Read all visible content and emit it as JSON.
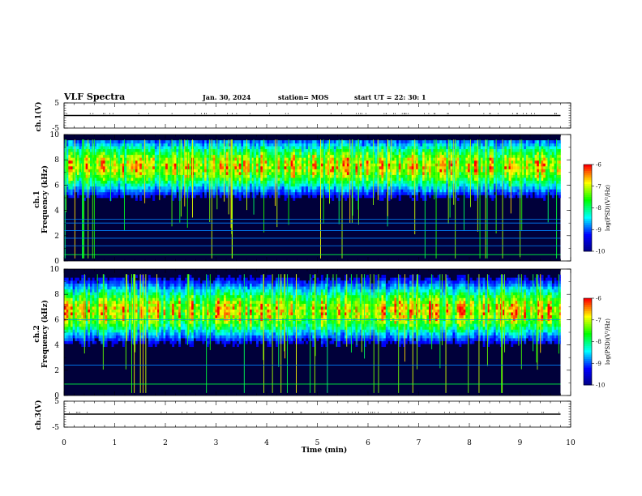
{
  "header": {
    "title": "VLF Spectra",
    "date": "Jan. 30, 2024",
    "station": "station= MOS",
    "start_ut": "start  UT  =   22: 30: 1"
  },
  "chart_data": [
    {
      "type": "line",
      "panel": "ch1-waveform",
      "ylabel": "ch.1(V)",
      "xlim": [
        0,
        10
      ],
      "ylim": [
        -5,
        5
      ],
      "yticks": [
        "5",
        "-5"
      ],
      "series": [
        {
          "x": [
            0,
            9.8
          ],
          "y": [
            0,
            0
          ]
        }
      ]
    },
    {
      "type": "heatmap",
      "panel": "ch1-spectrogram",
      "ylabel": "ch.1\nFrequency (kHz)",
      "xlim": [
        0,
        9.8
      ],
      "ylim": [
        0,
        10
      ],
      "yticks": [
        "0",
        "2",
        "4",
        "6",
        "8",
        "10"
      ],
      "band_center_khz": 7.5,
      "band_spread_khz": 1.8,
      "horizontal_lines_khz": [
        0.5,
        1.2,
        1.8,
        2.4,
        3.0,
        3.3
      ],
      "colorbar": {
        "label": "log(PSD)(V²/Hz)",
        "ticks": [
          "-6",
          "-7",
          "-8",
          "-9",
          "-10"
        ],
        "range": [
          -10,
          -6
        ]
      }
    },
    {
      "type": "heatmap",
      "panel": "ch2-spectrogram",
      "ylabel": "ch.2\nFrequency (kHz)",
      "xlim": [
        0,
        9.8
      ],
      "ylim": [
        0,
        10
      ],
      "yticks": [
        "0",
        "2",
        "4",
        "6",
        "8",
        "10"
      ],
      "band_center_khz": 6.7,
      "band_spread_khz": 1.9,
      "horizontal_lines_khz": [
        0.9,
        2.4,
        6.0
      ],
      "colorbar": {
        "label": "log(PSD)(V²/Hz)",
        "ticks": [
          "-6",
          "-7",
          "-8",
          "-9",
          "-10"
        ],
        "range": [
          -10,
          -6
        ]
      }
    },
    {
      "type": "line",
      "panel": "ch3-waveform",
      "ylabel": "ch.3(V)",
      "xlim": [
        0,
        10
      ],
      "ylim": [
        -5,
        5
      ],
      "yticks": [
        "5",
        "-5"
      ],
      "series": [
        {
          "x": [
            0,
            9.8
          ],
          "y": [
            0,
            0
          ]
        }
      ]
    }
  ],
  "xaxis": {
    "label": "Time  (min)",
    "ticks": [
      "0",
      "1",
      "2",
      "3",
      "4",
      "5",
      "6",
      "7",
      "8",
      "9",
      "10"
    ],
    "range": [
      0,
      10
    ]
  },
  "colors": {
    "background": "#000033",
    "colormap": [
      "#00007f",
      "#0000ff",
      "#00ffff",
      "#00ff00",
      "#ffff00",
      "#ff0000",
      "#ffffff"
    ]
  }
}
